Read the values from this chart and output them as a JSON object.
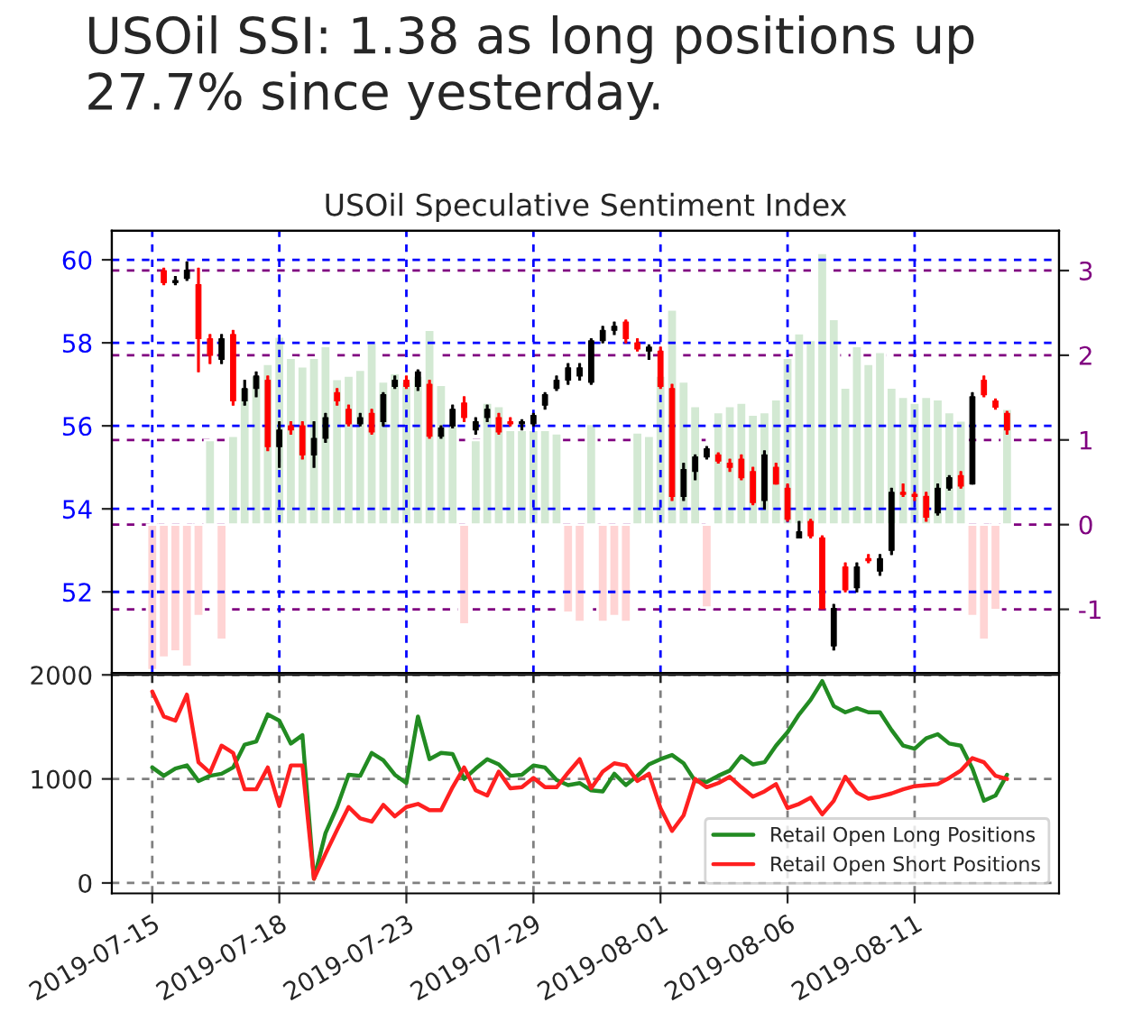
{
  "chart_data": [
    {
      "type": "candlestick",
      "title": "USOil SSI: 1.38 as long positions up 27.7% since yesterday.",
      "subtitle": "USOil Speculative Sentiment Index",
      "categories": [
        null,
        null,
        null,
        "2019-07-15",
        null,
        null,
        null,
        null,
        null,
        null,
        null,
        null,
        null,
        null,
        "2019-07-18",
        null,
        null,
        null,
        null,
        null,
        null,
        null,
        null,
        null,
        null,
        "2019-07-23",
        null,
        null,
        null,
        null,
        null,
        null,
        null,
        null,
        null,
        null,
        "2019-07-29",
        null,
        null,
        null,
        null,
        null,
        null,
        null,
        null,
        null,
        null,
        "2019-08-01",
        null,
        null,
        null,
        null,
        null,
        null,
        null,
        null,
        null,
        null,
        "2019-08-06",
        null,
        null,
        null,
        null,
        null,
        null,
        null,
        null,
        null,
        null,
        "2019-08-11",
        null,
        null,
        null,
        null,
        null,
        null,
        null,
        null,
        null,
        null,
        null,
        null
      ],
      "ohlc": [
        null,
        null,
        null,
        null,
        [
          59.74,
          59.8,
          59.4,
          59.45
        ],
        [
          59.45,
          59.6,
          59.4,
          59.5
        ],
        [
          59.55,
          59.95,
          59.5,
          59.75
        ],
        [
          59.4,
          59.8,
          57.3,
          58.1
        ],
        [
          58.1,
          58.2,
          57.5,
          57.7
        ],
        [
          57.6,
          58.2,
          57.5,
          58.1
        ],
        [
          58.2,
          58.3,
          56.5,
          56.6
        ],
        [
          56.6,
          57.1,
          56.5,
          56.9
        ],
        [
          56.9,
          57.3,
          56.7,
          57.2
        ],
        [
          57.1,
          57.2,
          55.4,
          55.5
        ],
        [
          55.5,
          56.1,
          55.0,
          55.9
        ],
        [
          56.0,
          56.1,
          55.8,
          55.9
        ],
        [
          56.0,
          56.1,
          55.2,
          55.3
        ],
        [
          55.3,
          56.1,
          55.0,
          55.7
        ],
        [
          55.7,
          56.3,
          55.6,
          56.2
        ],
        [
          56.8,
          56.9,
          56.5,
          56.6
        ],
        [
          56.4,
          56.5,
          56.0,
          56.05
        ],
        [
          56.05,
          56.3,
          56.0,
          56.2
        ],
        [
          56.3,
          56.4,
          55.8,
          55.85
        ],
        [
          56.1,
          56.8,
          56.0,
          56.75
        ],
        [
          56.95,
          57.2,
          56.9,
          57.1
        ],
        [
          57.1,
          57.2,
          56.9,
          56.95
        ],
        [
          56.95,
          57.35,
          56.85,
          57.3
        ],
        [
          57.0,
          57.1,
          55.7,
          55.75
        ],
        [
          55.75,
          56.0,
          55.7,
          55.95
        ],
        [
          56.0,
          56.5,
          55.95,
          56.4
        ],
        [
          56.55,
          56.7,
          56.1,
          56.2
        ],
        [
          55.9,
          56.2,
          55.8,
          56.1
        ],
        [
          56.2,
          56.5,
          56.1,
          56.4
        ],
        [
          56.2,
          56.3,
          55.8,
          55.85
        ],
        [
          56.1,
          56.2,
          56.0,
          56.05
        ],
        [
          56.05,
          56.15,
          55.9,
          56.1
        ],
        [
          56.05,
          56.3,
          56.0,
          56.25
        ],
        [
          56.5,
          56.8,
          56.4,
          56.75
        ],
        [
          56.9,
          57.2,
          56.85,
          57.1
        ],
        [
          57.1,
          57.5,
          57.0,
          57.4
        ],
        [
          57.2,
          57.5,
          57.1,
          57.4
        ],
        [
          57.05,
          58.1,
          57.0,
          58.05
        ],
        [
          58.05,
          58.4,
          58.0,
          58.3
        ],
        [
          58.3,
          58.5,
          58.2,
          58.4
        ],
        [
          58.5,
          58.55,
          58.0,
          58.1
        ],
        [
          58.0,
          58.1,
          57.8,
          57.85
        ],
        [
          57.8,
          57.95,
          57.6,
          57.9
        ],
        [
          57.8,
          57.9,
          56.9,
          56.95
        ],
        [
          56.9,
          57.0,
          54.2,
          54.3
        ],
        [
          54.3,
          55.1,
          54.2,
          54.95
        ],
        [
          54.9,
          55.3,
          54.7,
          55.25
        ],
        [
          55.25,
          55.5,
          55.2,
          55.45
        ],
        [
          55.3,
          55.35,
          55.1,
          55.15
        ],
        [
          55.1,
          55.2,
          54.9,
          55.0
        ],
        [
          55.2,
          55.3,
          54.7,
          54.75
        ],
        [
          54.9,
          55.0,
          54.1,
          54.15
        ],
        [
          54.2,
          55.4,
          54.0,
          55.3
        ],
        [
          55.0,
          55.1,
          54.6,
          54.6
        ],
        [
          54.5,
          54.6,
          53.7,
          53.75
        ],
        [
          53.3,
          53.7,
          53.3,
          53.45
        ],
        [
          53.7,
          53.75,
          53.3,
          53.35
        ],
        [
          53.3,
          53.35,
          51.6,
          51.6
        ],
        [
          50.7,
          51.7,
          50.6,
          51.6
        ],
        [
          52.6,
          52.7,
          52.0,
          52.05
        ],
        [
          52.1,
          52.7,
          52.0,
          52.6
        ],
        [
          52.8,
          52.9,
          52.7,
          52.75
        ],
        [
          52.5,
          52.9,
          52.4,
          52.8
        ],
        [
          53.0,
          54.5,
          52.9,
          54.4
        ],
        [
          54.4,
          54.6,
          54.3,
          54.35
        ],
        [
          54.35,
          54.4,
          54.2,
          54.3
        ],
        [
          54.3,
          54.4,
          53.7,
          53.8
        ],
        [
          53.9,
          54.6,
          53.85,
          54.5
        ],
        [
          54.5,
          54.8,
          54.45,
          54.75
        ],
        [
          54.8,
          54.9,
          54.5,
          54.55
        ],
        [
          54.6,
          56.8,
          54.6,
          56.7
        ],
        [
          57.1,
          57.2,
          56.7,
          56.75
        ],
        [
          56.6,
          56.65,
          56.4,
          56.45
        ],
        [
          56.3,
          56.35,
          55.8,
          55.9
        ],
        null,
        null,
        null,
        null
      ],
      "series": [
        {
          "type": "bar",
          "axis": "y2",
          "color": "#d3e9d3",
          "values": [
            null,
            null,
            null,
            null,
            null,
            null,
            null,
            null,
            1.0,
            null,
            1.05,
            1.62,
            1.76,
            1.9,
            2.22,
            1.97,
            1.87,
            1.97,
            2.11,
            1.72,
            1.76,
            1.83,
            2.15,
            1.69,
            1.79,
            1.69,
            1.76,
            2.3,
            1.65,
            1.19,
            null,
            1.0,
            1.44,
            1.4,
            1.12,
            1.12,
            1.12,
            1.12,
            1.08,
            null,
            null,
            1.19,
            null,
            null,
            null,
            1.09,
            1.05,
            1.76,
            2.54,
            1.69,
            1.4,
            null,
            1.33,
            1.4,
            1.44,
            1.3,
            1.33,
            1.48,
            1.97,
            2.26,
            2.18,
            3.21,
            2.43,
            1.62,
            2.11,
            1.9,
            2.04,
            1.62,
            1.51,
            1.44,
            1.51,
            1.48,
            1.33,
            1.23,
            null,
            null,
            null,
            1.37,
            null,
            null,
            null,
            null
          ]
        },
        {
          "type": "bar",
          "axis": "y2",
          "color": "#ffd4d4",
          "values": [
            null,
            null,
            null,
            -1.72,
            -1.57,
            -1.5,
            -1.68,
            -1.08,
            null,
            -1.36,
            null,
            null,
            null,
            null,
            null,
            null,
            null,
            null,
            null,
            null,
            null,
            null,
            null,
            null,
            null,
            null,
            null,
            null,
            null,
            null,
            -1.18,
            null,
            null,
            null,
            null,
            null,
            null,
            null,
            null,
            -1.04,
            -1.15,
            null,
            -1.15,
            -1.08,
            -1.15,
            null,
            null,
            null,
            null,
            null,
            null,
            -0.98,
            null,
            null,
            null,
            null,
            null,
            null,
            null,
            null,
            null,
            null,
            null,
            null,
            null,
            null,
            null,
            null,
            null,
            null,
            null,
            null,
            null,
            null,
            -1.08,
            -1.36,
            -1.01,
            null,
            null,
            null,
            null,
            null
          ]
        }
      ],
      "ylim": [
        50.05,
        60.7
      ],
      "yticks": [
        52,
        54,
        56,
        58,
        60
      ],
      "y2lim": [
        -1.75,
        3.47
      ],
      "y2ticks": [
        -1,
        0,
        1,
        2,
        3
      ],
      "tick_labels": "y",
      "grid": true
    },
    {
      "type": "line",
      "categories": [
        null,
        null,
        null,
        "2019-07-15",
        null,
        null,
        null,
        null,
        null,
        null,
        null,
        null,
        null,
        null,
        "2019-07-18",
        null,
        null,
        null,
        null,
        null,
        null,
        null,
        null,
        null,
        null,
        "2019-07-23",
        null,
        null,
        null,
        null,
        null,
        null,
        null,
        null,
        null,
        null,
        "2019-07-29",
        null,
        null,
        null,
        null,
        null,
        null,
        null,
        null,
        null,
        null,
        "2019-08-01",
        null,
        null,
        null,
        null,
        null,
        null,
        null,
        null,
        null,
        null,
        "2019-08-06",
        null,
        null,
        null,
        null,
        null,
        null,
        null,
        null,
        null,
        null,
        "2019-08-11",
        null,
        null,
        null,
        null,
        null,
        null,
        null,
        null,
        null,
        null,
        null,
        null
      ],
      "series": [
        {
          "name": "Retail Open Long Positions",
          "color": "#228b22",
          "values": [
            null,
            null,
            null,
            1110,
            1030,
            1100,
            1130,
            980,
            1030,
            1050,
            1110,
            1330,
            1360,
            1620,
            1560,
            1340,
            1420,
            40,
            480,
            730,
            1040,
            1030,
            1250,
            1180,
            1040,
            960,
            1600,
            1190,
            1250,
            1240,
            1000,
            1100,
            1190,
            1140,
            1030,
            1040,
            1130,
            1110,
            990,
            940,
            960,
            890,
            880,
            1050,
            940,
            1030,
            1140,
            1190,
            1230,
            1150,
            980,
            970,
            1030,
            1080,
            1220,
            1140,
            1160,
            1320,
            1450,
            1620,
            1760,
            1940,
            1700,
            1640,
            1680,
            1640,
            1640,
            1470,
            1320,
            1290,
            1390,
            1430,
            1340,
            1320,
            1100,
            790,
            840,
            1040,
            null,
            null,
            null,
            null
          ]
        },
        {
          "name": "Retail Open Short Positions",
          "color": "#ff2020",
          "values": [
            null,
            null,
            null,
            1840,
            1600,
            1560,
            1810,
            1160,
            1060,
            1320,
            1250,
            900,
            900,
            1110,
            740,
            1130,
            1130,
            40,
            280,
            510,
            730,
            620,
            590,
            750,
            640,
            730,
            760,
            700,
            700,
            920,
            1110,
            890,
            840,
            1070,
            910,
            920,
            1010,
            920,
            920,
            1060,
            1190,
            910,
            1070,
            1150,
            1130,
            980,
            1050,
            720,
            500,
            650,
            1000,
            920,
            960,
            1020,
            920,
            830,
            880,
            950,
            720,
            760,
            820,
            660,
            790,
            1020,
            870,
            810,
            830,
            860,
            900,
            930,
            940,
            950,
            1010,
            1080,
            1200,
            1160,
            1030,
            1000,
            null,
            null,
            null,
            null
          ]
        }
      ],
      "ylim": [
        -100,
        2000
      ],
      "yticks": [
        0,
        1000,
        2000
      ],
      "grid": true,
      "legend": "bottom right"
    }
  ]
}
